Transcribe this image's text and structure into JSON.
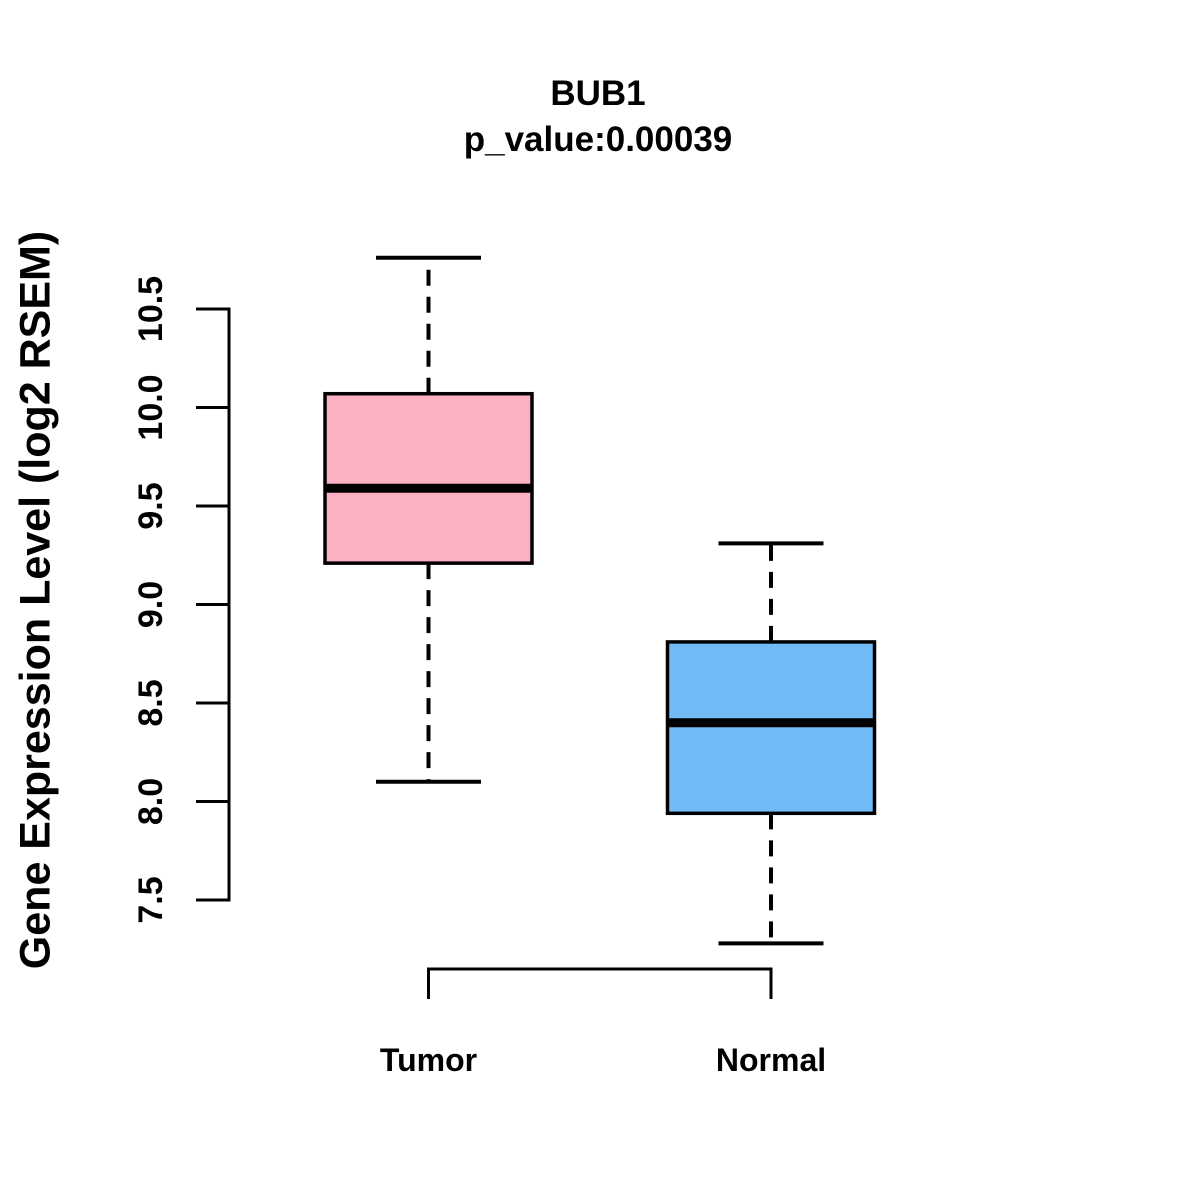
{
  "title": "BUB1",
  "subtitle": "p_value:0.00039",
  "chart_data": {
    "type": "boxplot",
    "title": "BUB1",
    "subtitle": "p_value:0.00039",
    "ylabel": "Gene Expression Level (log2 RSEM)",
    "xlabel": "",
    "ylim": [
      7.5,
      10.5
    ],
    "y_ticks": [
      7.5,
      8.0,
      8.5,
      9.0,
      9.5,
      10.0,
      10.5
    ],
    "grid": false,
    "legend": "none",
    "categories": [
      "Tumor",
      "Normal"
    ],
    "series": [
      {
        "name": "Tumor",
        "color": "#FCB1C2",
        "whisker_low": 8.1,
        "q1": 9.21,
        "median": 9.59,
        "q3": 10.07,
        "whisker_high": 10.76
      },
      {
        "name": "Normal",
        "color": "#71BCF7",
        "whisker_low": 7.28,
        "q1": 7.94,
        "median": 8.4,
        "q3": 8.81,
        "whisker_high": 9.31
      }
    ],
    "colors": {
      "stroke": "#000000",
      "background": "#ffffff"
    }
  }
}
